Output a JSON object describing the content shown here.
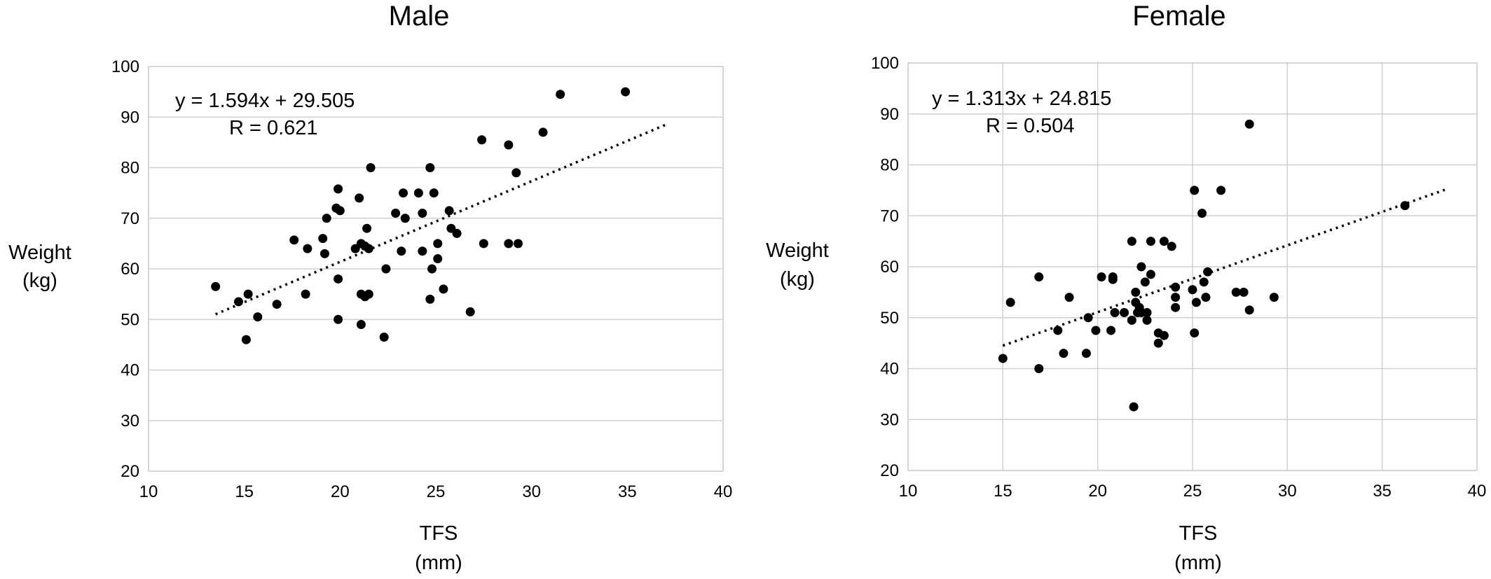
{
  "chart_data": [
    {
      "type": "scatter",
      "title": "Male",
      "xlabel": "TFS",
      "xunit": "(mm)",
      "ylabel": "Weight",
      "yunit": "(kg)",
      "xlim": [
        10,
        40
      ],
      "ylim": [
        20,
        100
      ],
      "xticks": [
        "10",
        "15",
        "20",
        "25",
        "30",
        "35",
        "40"
      ],
      "yticks": [
        "20",
        "30",
        "40",
        "50",
        "60",
        "70",
        "80",
        "90",
        "100"
      ],
      "grid": "horizontal",
      "trendline": {
        "type": "linear",
        "slope": 1.594,
        "intercept": 29.505,
        "x_range": [
          13.5,
          37.0
        ],
        "style": "dotted"
      },
      "equation": "y = 1.594x + 29.505",
      "r_label": "R = 0.621",
      "points": [
        [
          13.5,
          56.5
        ],
        [
          14.7,
          53.5
        ],
        [
          15.2,
          55
        ],
        [
          15.1,
          46
        ],
        [
          15.7,
          50.5
        ],
        [
          16.7,
          53
        ],
        [
          17.6,
          65.7
        ],
        [
          18.3,
          64
        ],
        [
          18.2,
          55
        ],
        [
          19.3,
          70
        ],
        [
          19.1,
          66
        ],
        [
          19.2,
          63
        ],
        [
          19.8,
          72
        ],
        [
          20.0,
          71.5
        ],
        [
          19.9,
          75.8
        ],
        [
          19.9,
          58
        ],
        [
          19.9,
          50
        ],
        [
          21.6,
          80
        ],
        [
          21.0,
          74
        ],
        [
          20.8,
          64
        ],
        [
          21.1,
          65
        ],
        [
          21.3,
          64.5
        ],
        [
          21.5,
          64
        ],
        [
          21.4,
          68
        ],
        [
          21.1,
          55
        ],
        [
          21.3,
          54.5
        ],
        [
          21.5,
          55
        ],
        [
          21.1,
          49
        ],
        [
          22.9,
          71
        ],
        [
          23.3,
          75
        ],
        [
          23.4,
          70
        ],
        [
          24.1,
          75
        ],
        [
          24.3,
          71
        ],
        [
          24.3,
          63.5
        ],
        [
          23.2,
          63.5
        ],
        [
          22.4,
          60
        ],
        [
          22.3,
          46.5
        ],
        [
          24.7,
          80
        ],
        [
          24.9,
          75
        ],
        [
          25.1,
          65
        ],
        [
          25.1,
          62
        ],
        [
          25.4,
          56
        ],
        [
          25.7,
          71.5
        ],
        [
          25.8,
          68
        ],
        [
          26.1,
          67
        ],
        [
          24.8,
          60
        ],
        [
          24.7,
          54
        ],
        [
          26.8,
          51.5
        ],
        [
          27.4,
          85.5
        ],
        [
          27.5,
          65
        ],
        [
          28.8,
          84.5
        ],
        [
          28.8,
          65
        ],
        [
          29.3,
          65
        ],
        [
          29.2,
          79
        ],
        [
          30.6,
          87
        ],
        [
          31.5,
          94.5
        ],
        [
          34.9,
          95
        ]
      ]
    },
    {
      "type": "scatter",
      "title": "Female",
      "xlabel": "TFS",
      "xunit": "(mm)",
      "ylabel": "Weight",
      "yunit": "(kg)",
      "xlim": [
        10,
        40
      ],
      "ylim": [
        20,
        100
      ],
      "xticks": [
        "10",
        "15",
        "20",
        "25",
        "30",
        "35",
        "40"
      ],
      "yticks": [
        "20",
        "30",
        "40",
        "50",
        "60",
        "70",
        "80",
        "90",
        "100"
      ],
      "grid": "both",
      "trendline": {
        "type": "linear",
        "slope": 1.313,
        "intercept": 24.815,
        "x_range": [
          15.0,
          38.3
        ],
        "style": "dotted"
      },
      "equation": "y = 1.313x + 24.815",
      "r_label": "R = 0.504",
      "points": [
        [
          15.0,
          42
        ],
        [
          15.4,
          53
        ],
        [
          16.9,
          58
        ],
        [
          16.9,
          40
        ],
        [
          17.9,
          47.5
        ],
        [
          18.2,
          43
        ],
        [
          18.5,
          54
        ],
        [
          19.4,
          43
        ],
        [
          19.5,
          50
        ],
        [
          19.9,
          47.5
        ],
        [
          20.2,
          58
        ],
        [
          20.8,
          58
        ],
        [
          20.8,
          57.5
        ],
        [
          20.9,
          51
        ],
        [
          20.7,
          47.5
        ],
        [
          21.4,
          51
        ],
        [
          21.8,
          65
        ],
        [
          21.8,
          49.5
        ],
        [
          22.0,
          55
        ],
        [
          22.0,
          53
        ],
        [
          22.1,
          51
        ],
        [
          22.2,
          52
        ],
        [
          22.3,
          51
        ],
        [
          22.3,
          60
        ],
        [
          22.5,
          57
        ],
        [
          22.6,
          49.5
        ],
        [
          22.6,
          51
        ],
        [
          22.8,
          58.5
        ],
        [
          22.8,
          65
        ],
        [
          23.2,
          47
        ],
        [
          23.2,
          45
        ],
        [
          23.5,
          65
        ],
        [
          23.5,
          46.5
        ],
        [
          23.9,
          64
        ],
        [
          24.1,
          56
        ],
        [
          24.1,
          54
        ],
        [
          24.1,
          52
        ],
        [
          21.9,
          32.5
        ],
        [
          25.0,
          55.5
        ],
        [
          25.1,
          75
        ],
        [
          25.2,
          53
        ],
        [
          25.1,
          47
        ],
        [
          25.5,
          70.5
        ],
        [
          25.6,
          57
        ],
        [
          25.7,
          54
        ],
        [
          25.8,
          59
        ],
        [
          26.5,
          75
        ],
        [
          27.3,
          55
        ],
        [
          27.7,
          55
        ],
        [
          28.0,
          51.5
        ],
        [
          28.0,
          88
        ],
        [
          29.3,
          54
        ],
        [
          36.2,
          72
        ]
      ]
    }
  ]
}
